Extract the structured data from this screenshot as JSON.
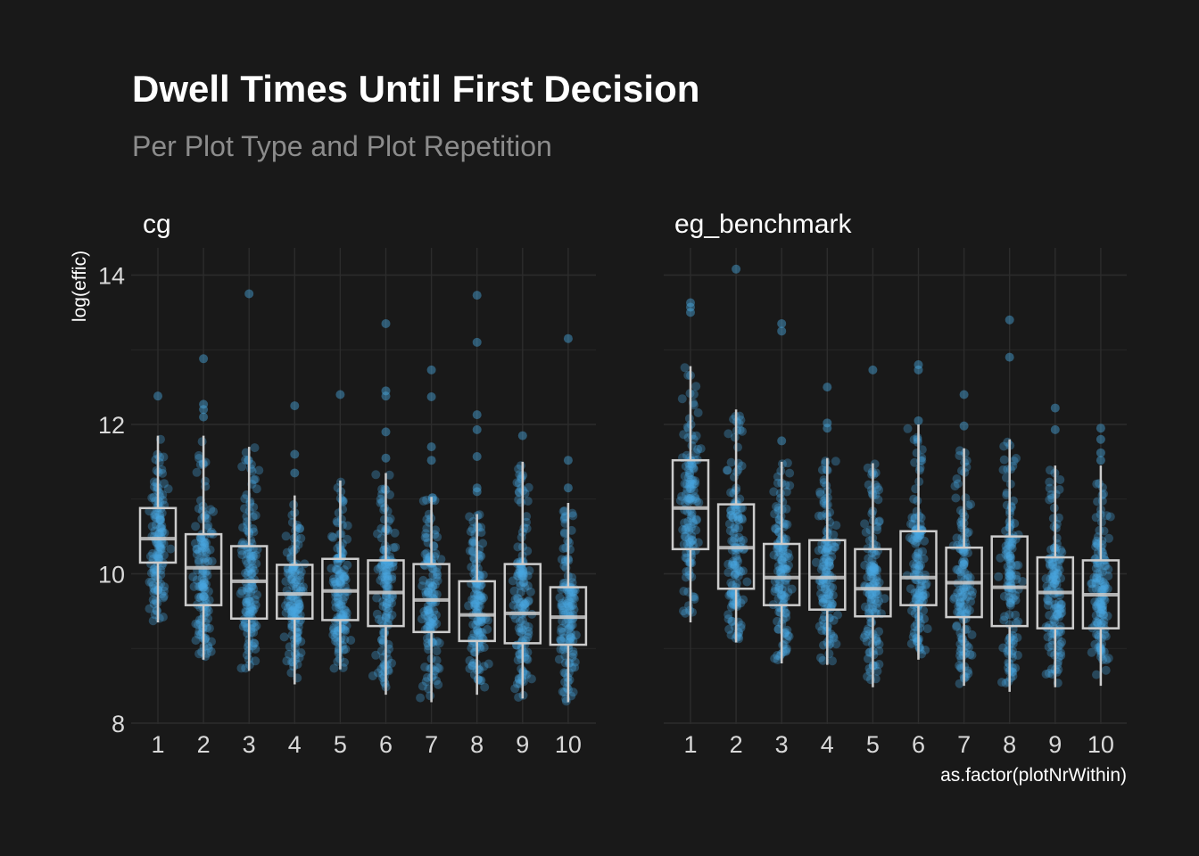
{
  "chart_data": {
    "type": "boxplot",
    "title": "Dwell Times Until First Decision",
    "subtitle": "Per Plot Type and Plot Repetition",
    "xlabel": "as.factor(plotNrWithin)",
    "ylabel": "log(effic)",
    "ylim": [
      8,
      14.4
    ],
    "yticks": [
      8,
      10,
      12,
      14
    ],
    "categories": [
      "1",
      "2",
      "3",
      "4",
      "5",
      "6",
      "7",
      "8",
      "9",
      "10"
    ],
    "grid": true,
    "jittered_points": true,
    "colors": {
      "background": "#191919",
      "grid": "#2c2c2c",
      "points": "#4aa8e0",
      "box": "#cccccc"
    },
    "panels": [
      {
        "name": "cg",
        "boxes": [
          {
            "q1": 10.15,
            "median": 10.47,
            "q3": 10.88,
            "whisker_low": 9.35,
            "whisker_high": 11.85,
            "outliers": [
              12.38
            ]
          },
          {
            "q1": 9.58,
            "median": 10.08,
            "q3": 10.53,
            "whisker_low": 8.85,
            "whisker_high": 11.85,
            "outliers": [
              12.1,
              12.2,
              12.27,
              12.88
            ]
          },
          {
            "q1": 9.4,
            "median": 9.9,
            "q3": 10.37,
            "whisker_low": 8.7,
            "whisker_high": 11.7,
            "outliers": [
              13.75
            ]
          },
          {
            "q1": 9.4,
            "median": 9.73,
            "q3": 10.12,
            "whisker_low": 8.52,
            "whisker_high": 11.05,
            "outliers": [
              11.35,
              11.6,
              12.25
            ]
          },
          {
            "q1": 9.38,
            "median": 9.77,
            "q3": 10.2,
            "whisker_low": 8.72,
            "whisker_high": 11.25,
            "outliers": [
              12.4
            ]
          },
          {
            "q1": 9.3,
            "median": 9.75,
            "q3": 10.18,
            "whisker_low": 8.38,
            "whisker_high": 11.35,
            "outliers": [
              11.55,
              11.9,
              12.38,
              12.45,
              13.35
            ]
          },
          {
            "q1": 9.22,
            "median": 9.65,
            "q3": 10.13,
            "whisker_low": 8.28,
            "whisker_high": 11.03,
            "outliers": [
              11.52,
              11.7,
              12.37,
              12.73
            ]
          },
          {
            "q1": 9.1,
            "median": 9.45,
            "q3": 9.9,
            "whisker_low": 8.38,
            "whisker_high": 10.8,
            "outliers": [
              11.1,
              11.15,
              11.57,
              11.93,
              12.13,
              13.1,
              13.73
            ]
          },
          {
            "q1": 9.07,
            "median": 9.47,
            "q3": 10.13,
            "whisker_low": 8.33,
            "whisker_high": 11.5,
            "outliers": [
              11.85
            ]
          },
          {
            "q1": 9.05,
            "median": 9.42,
            "q3": 9.82,
            "whisker_low": 8.28,
            "whisker_high": 10.95,
            "outliers": [
              11.15,
              11.52,
              13.15
            ]
          }
        ]
      },
      {
        "name": "eg_benchmark",
        "boxes": [
          {
            "q1": 10.33,
            "median": 10.88,
            "q3": 11.52,
            "whisker_low": 9.35,
            "whisker_high": 12.78,
            "outliers": [
              13.5,
              13.57,
              13.63
            ]
          },
          {
            "q1": 9.8,
            "median": 10.35,
            "q3": 10.93,
            "whisker_low": 9.08,
            "whisker_high": 12.2,
            "outliers": [
              14.08
            ]
          },
          {
            "q1": 9.58,
            "median": 9.95,
            "q3": 10.4,
            "whisker_low": 8.8,
            "whisker_high": 11.5,
            "outliers": [
              11.78,
              13.25,
              13.35
            ]
          },
          {
            "q1": 9.52,
            "median": 9.95,
            "q3": 10.45,
            "whisker_low": 8.78,
            "whisker_high": 11.55,
            "outliers": [
              11.95,
              12.02,
              12.5
            ]
          },
          {
            "q1": 9.43,
            "median": 9.8,
            "q3": 10.33,
            "whisker_low": 8.48,
            "whisker_high": 11.48,
            "outliers": [
              12.73
            ]
          },
          {
            "q1": 9.58,
            "median": 9.95,
            "q3": 10.57,
            "whisker_low": 8.85,
            "whisker_high": 12.0,
            "outliers": [
              12.05,
              12.73,
              12.8
            ]
          },
          {
            "q1": 9.42,
            "median": 9.88,
            "q3": 10.35,
            "whisker_low": 8.5,
            "whisker_high": 11.68,
            "outliers": [
              11.98,
              12.4
            ]
          },
          {
            "q1": 9.3,
            "median": 9.82,
            "q3": 10.5,
            "whisker_low": 8.42,
            "whisker_high": 11.8,
            "outliers": [
              12.9,
              13.4
            ]
          },
          {
            "q1": 9.27,
            "median": 9.75,
            "q3": 10.22,
            "whisker_low": 8.48,
            "whisker_high": 11.45,
            "outliers": [
              11.93,
              12.22
            ]
          },
          {
            "q1": 9.27,
            "median": 9.72,
            "q3": 10.18,
            "whisker_low": 8.5,
            "whisker_high": 11.45,
            "outliers": [
              11.52,
              11.62,
              11.8,
              11.95
            ]
          }
        ]
      }
    ]
  }
}
